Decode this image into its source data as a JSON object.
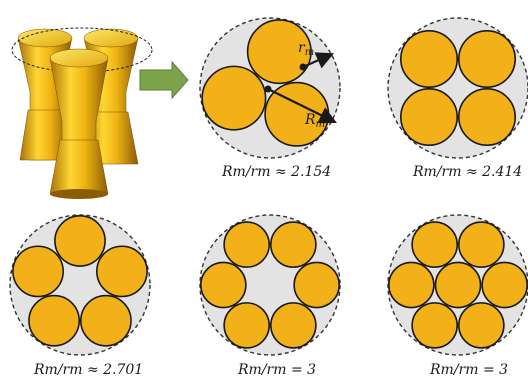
{
  "colors": {
    "disc": "#f2b118",
    "disc_stroke": "#1a1a1a",
    "container": "#e3e3e3",
    "container_stroke": "#333333",
    "arrow": "#7aa34a",
    "cone_light": "#ffe24a",
    "cone_dark": "#b07a0a"
  },
  "labels": {
    "panel_1": "Rm/rm ≈ 2.154",
    "panel_2": "Rm/rm ≈ 2.414",
    "panel_3": "Rm/rm ≈ 2.701",
    "panel_4": "Rm/rm = 3",
    "panel_5": "Rm/rm = 3",
    "small_radius": "rm",
    "big_radius": "Rm"
  },
  "configs": [
    {
      "name": "three-disc-packing",
      "ratio": 2.154,
      "discs": 3
    },
    {
      "name": "four-disc-packing",
      "ratio": 2.414,
      "discs": 4
    },
    {
      "name": "five-disc-packing",
      "ratio": 2.701,
      "discs": 5
    },
    {
      "name": "six-disc-ring-packing",
      "ratio": 3,
      "discs": 6
    },
    {
      "name": "seven-disc-hex-packing",
      "ratio": 3,
      "discs": 7
    }
  ]
}
